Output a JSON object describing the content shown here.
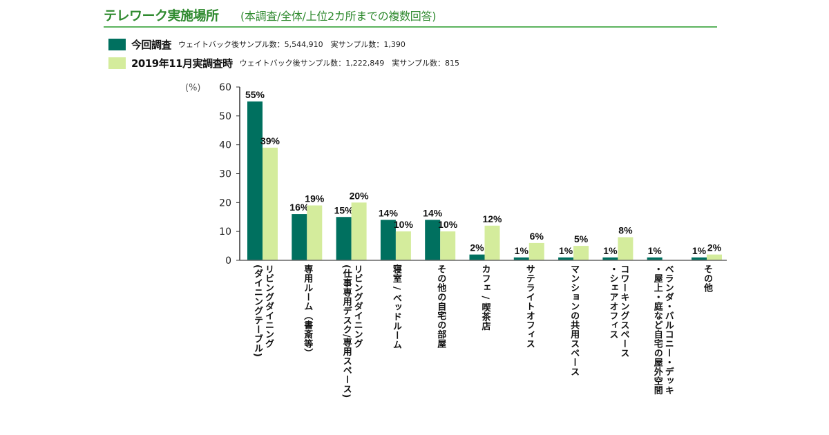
{
  "header": {
    "title": "テレワーク実施場所",
    "subtitle": "(本調査/全体/上位2カ所までの複数回答)"
  },
  "legend": [
    {
      "name": "今回調査",
      "note": "ウェイトバック後サンプル数：5,544,910　実サンプル数：1,390",
      "color": "#00705f"
    },
    {
      "name": "2019年11月実調査時",
      "note": "ウェイトバック後サンプル数：1,222,849　実サンプル数：815",
      "color": "#d4ec9c"
    }
  ],
  "chart_data": {
    "type": "bar",
    "title": "テレワーク実施場所",
    "subtitle": "(本調査/全体/上位2カ所までの複数回答)",
    "xlabel": "",
    "ylabel": "(%)",
    "ylim": [
      0,
      60
    ],
    "yticks": [
      "0",
      "10",
      "20",
      "30",
      "40",
      "50",
      "60"
    ],
    "grid": false,
    "legend_position": "top-left",
    "categories": [
      [
        "リビングダイニング",
        "(ダイニングテーブル)"
      ],
      [
        "専用ルーム（書斎等）"
      ],
      [
        "リビングダイニング",
        "(仕事専用デスク/専用スペース)"
      ],
      [
        "寝室 / ベッドルーム"
      ],
      [
        "その他の自宅の部屋"
      ],
      [
        "カフェ / 喫茶店"
      ],
      [
        "サテライトオフィス"
      ],
      [
        "マンションの共用スペース"
      ],
      [
        "コワーキングスペース",
        "・シェアオフィス"
      ],
      [
        "ベランダ・バルコニー・デッキ",
        "・屋上・庭など自宅の屋外空間"
      ],
      [
        "その他"
      ]
    ],
    "series": [
      {
        "name": "今回調査",
        "color": "#00705f",
        "values": [
          55,
          16,
          15,
          14,
          14,
          2,
          1,
          1,
          1,
          1,
          1
        ],
        "labels": [
          "55%",
          "16%",
          "15%",
          "14%",
          "14%",
          "2%",
          "1%",
          "1%",
          "1%",
          "1%",
          "1%"
        ]
      },
      {
        "name": "2019年11月実調査時",
        "color": "#d4ec9c",
        "values": [
          39,
          19,
          20,
          10,
          10,
          12,
          6,
          5,
          8,
          null,
          2
        ],
        "labels": [
          "39%",
          "19%",
          "20%",
          "10%",
          "10%",
          "12%",
          "6%",
          "5%",
          "8%",
          null,
          "2%"
        ]
      }
    ]
  }
}
